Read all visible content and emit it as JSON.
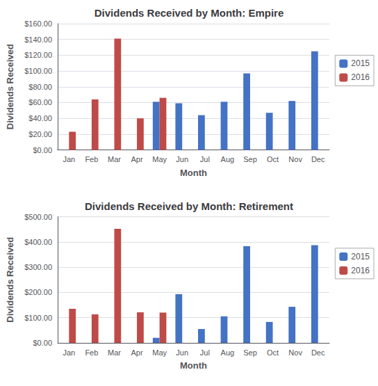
{
  "chart_data": [
    {
      "type": "bar",
      "title": "Dividends Received by Month: Empire",
      "xlabel": "Month",
      "ylabel": "Dividends Received",
      "categories": [
        "Jan",
        "Feb",
        "Mar",
        "Apr",
        "May",
        "Jun",
        "Jul",
        "Aug",
        "Sep",
        "Oct",
        "Nov",
        "Dec"
      ],
      "series": [
        {
          "name": "2015",
          "color": "#4472C4",
          "values": [
            0,
            0,
            0,
            0,
            61,
            59,
            44,
            61,
            97,
            47,
            62,
            125
          ]
        },
        {
          "name": "2016",
          "color": "#BE4B48",
          "values": [
            23,
            64,
            141,
            40,
            66,
            0,
            0,
            0,
            0,
            0,
            0,
            0
          ]
        }
      ],
      "ylim": [
        0,
        160
      ],
      "yticks": [
        {
          "value": 0,
          "label": "$0.00"
        },
        {
          "value": 20,
          "label": "$20.00"
        },
        {
          "value": 40,
          "label": "$40.00"
        },
        {
          "value": 60,
          "label": "$60.00"
        },
        {
          "value": 80,
          "label": "$80.00"
        },
        {
          "value": 100,
          "label": "$100.00"
        },
        {
          "value": 120,
          "label": "$120.00"
        },
        {
          "value": 140,
          "label": "$140.00"
        },
        {
          "value": 160,
          "label": "$160.00"
        }
      ],
      "grid": true,
      "legend": "right"
    },
    {
      "type": "bar",
      "title": "Dividends Received by Month: Retirement",
      "xlabel": "Month",
      "ylabel": "Dividends Received",
      "categories": [
        "Jan",
        "Feb",
        "Mar",
        "Apr",
        "May",
        "Jun",
        "Jul",
        "Aug",
        "Sep",
        "Oct",
        "Nov",
        "Dec"
      ],
      "series": [
        {
          "name": "2015",
          "color": "#4472C4",
          "values": [
            0,
            0,
            0,
            0,
            20,
            193,
            55,
            105,
            383,
            83,
            143,
            387
          ]
        },
        {
          "name": "2016",
          "color": "#BE4B48",
          "values": [
            135,
            113,
            452,
            121,
            120,
            0,
            0,
            0,
            0,
            0,
            0,
            0
          ]
        }
      ],
      "ylim": [
        0,
        500
      ],
      "yticks": [
        {
          "value": 0,
          "label": "$0.00"
        },
        {
          "value": 100,
          "label": "$100.00"
        },
        {
          "value": 200,
          "label": "$200.00"
        },
        {
          "value": 300,
          "label": "$300.00"
        },
        {
          "value": 400,
          "label": "$400.00"
        },
        {
          "value": 500,
          "label": "$500.00"
        }
      ],
      "grid": true,
      "legend": "right"
    }
  ]
}
